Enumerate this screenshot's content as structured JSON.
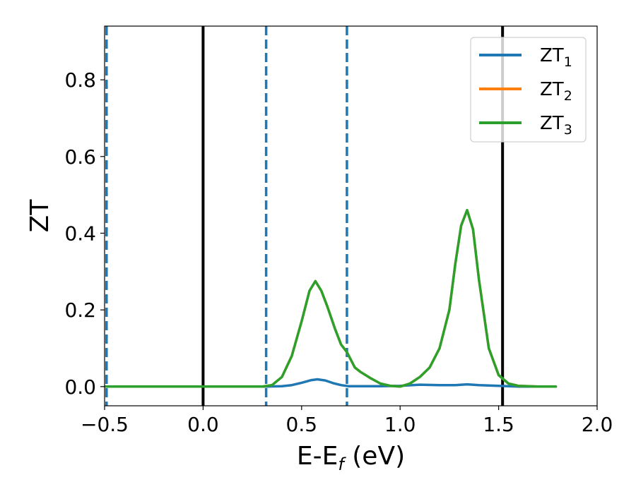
{
  "chart_data": {
    "type": "line",
    "xlabel": {
      "main": "E-E",
      "sub": "f",
      "unit": " (eV)"
    },
    "ylabel": "ZT",
    "xlim": [
      -0.5,
      2.0
    ],
    "ylim": [
      -0.05,
      0.94
    ],
    "xticks": [
      -0.5,
      0.0,
      0.5,
      1.0,
      1.5,
      2.0
    ],
    "xtick_labels": [
      "−0.5",
      "0.0",
      "0.5",
      "1.0",
      "1.5",
      "2.0"
    ],
    "yticks": [
      0.0,
      0.2,
      0.4,
      0.6,
      0.8
    ],
    "ytick_labels": [
      "0.0",
      "0.2",
      "0.4",
      "0.6",
      "0.8"
    ],
    "grid": false,
    "legend_position": "top-right",
    "vertical_lines": [
      {
        "x": 0.0,
        "style": "solid",
        "color": "#000000"
      },
      {
        "x": 1.52,
        "style": "solid",
        "color": "#000000"
      },
      {
        "x": -0.49,
        "style": "dashed",
        "color": "#1f77b4"
      },
      {
        "x": 0.32,
        "style": "dashed",
        "color": "#1f77b4"
      },
      {
        "x": 0.73,
        "style": "dashed",
        "color": "#1f77b4"
      }
    ],
    "series": [
      {
        "name": "ZT",
        "subscript": "1",
        "color": "#1f77b4",
        "x": [
          -0.5,
          0.0,
          0.3,
          0.4,
          0.45,
          0.5,
          0.55,
          0.58,
          0.62,
          0.66,
          0.7,
          0.74,
          0.8,
          0.9,
          1.0,
          1.1,
          1.2,
          1.28,
          1.34,
          1.4,
          1.5,
          1.6,
          1.79
        ],
        "y": [
          0.0,
          0.0,
          0.0,
          0.001,
          0.004,
          0.01,
          0.017,
          0.019,
          0.016,
          0.009,
          0.004,
          0.001,
          0.001,
          0.001,
          0.002,
          0.005,
          0.004,
          0.004,
          0.006,
          0.004,
          0.002,
          0.0,
          0.0
        ]
      },
      {
        "name": "ZT",
        "subscript": "2",
        "color": "#ff7f0e",
        "x": [
          -0.5,
          0.0,
          0.3,
          0.35,
          0.4,
          0.45,
          0.5,
          0.54,
          0.57,
          0.6,
          0.63,
          0.67,
          0.7,
          0.73,
          0.77,
          0.8,
          0.85,
          0.9,
          0.95,
          1.0,
          1.05,
          1.1,
          1.15,
          1.2,
          1.25,
          1.28,
          1.31,
          1.34,
          1.37,
          1.4,
          1.45,
          1.5,
          1.55,
          1.6,
          1.7,
          1.79
        ],
        "y": [
          0.0,
          0.0,
          0.0,
          0.004,
          0.025,
          0.08,
          0.17,
          0.25,
          0.275,
          0.25,
          0.21,
          0.15,
          0.11,
          0.09,
          0.05,
          0.038,
          0.022,
          0.008,
          0.002,
          0.0,
          0.008,
          0.025,
          0.05,
          0.1,
          0.2,
          0.32,
          0.42,
          0.46,
          0.41,
          0.28,
          0.1,
          0.03,
          0.008,
          0.002,
          0.0,
          0.0
        ]
      },
      {
        "name": "ZT",
        "subscript": "3",
        "color": "#2ca02c",
        "x": [
          -0.5,
          0.0,
          0.3,
          0.35,
          0.4,
          0.45,
          0.5,
          0.54,
          0.57,
          0.6,
          0.63,
          0.67,
          0.7,
          0.73,
          0.77,
          0.8,
          0.85,
          0.9,
          0.95,
          1.0,
          1.05,
          1.1,
          1.15,
          1.2,
          1.25,
          1.28,
          1.31,
          1.34,
          1.37,
          1.4,
          1.45,
          1.5,
          1.55,
          1.6,
          1.7,
          1.79
        ],
        "y": [
          0.0,
          0.0,
          0.0,
          0.004,
          0.025,
          0.08,
          0.17,
          0.25,
          0.275,
          0.25,
          0.21,
          0.15,
          0.11,
          0.09,
          0.05,
          0.038,
          0.022,
          0.008,
          0.002,
          0.0,
          0.008,
          0.025,
          0.05,
          0.1,
          0.2,
          0.32,
          0.42,
          0.46,
          0.41,
          0.28,
          0.1,
          0.03,
          0.008,
          0.002,
          0.0,
          0.0
        ]
      }
    ]
  }
}
